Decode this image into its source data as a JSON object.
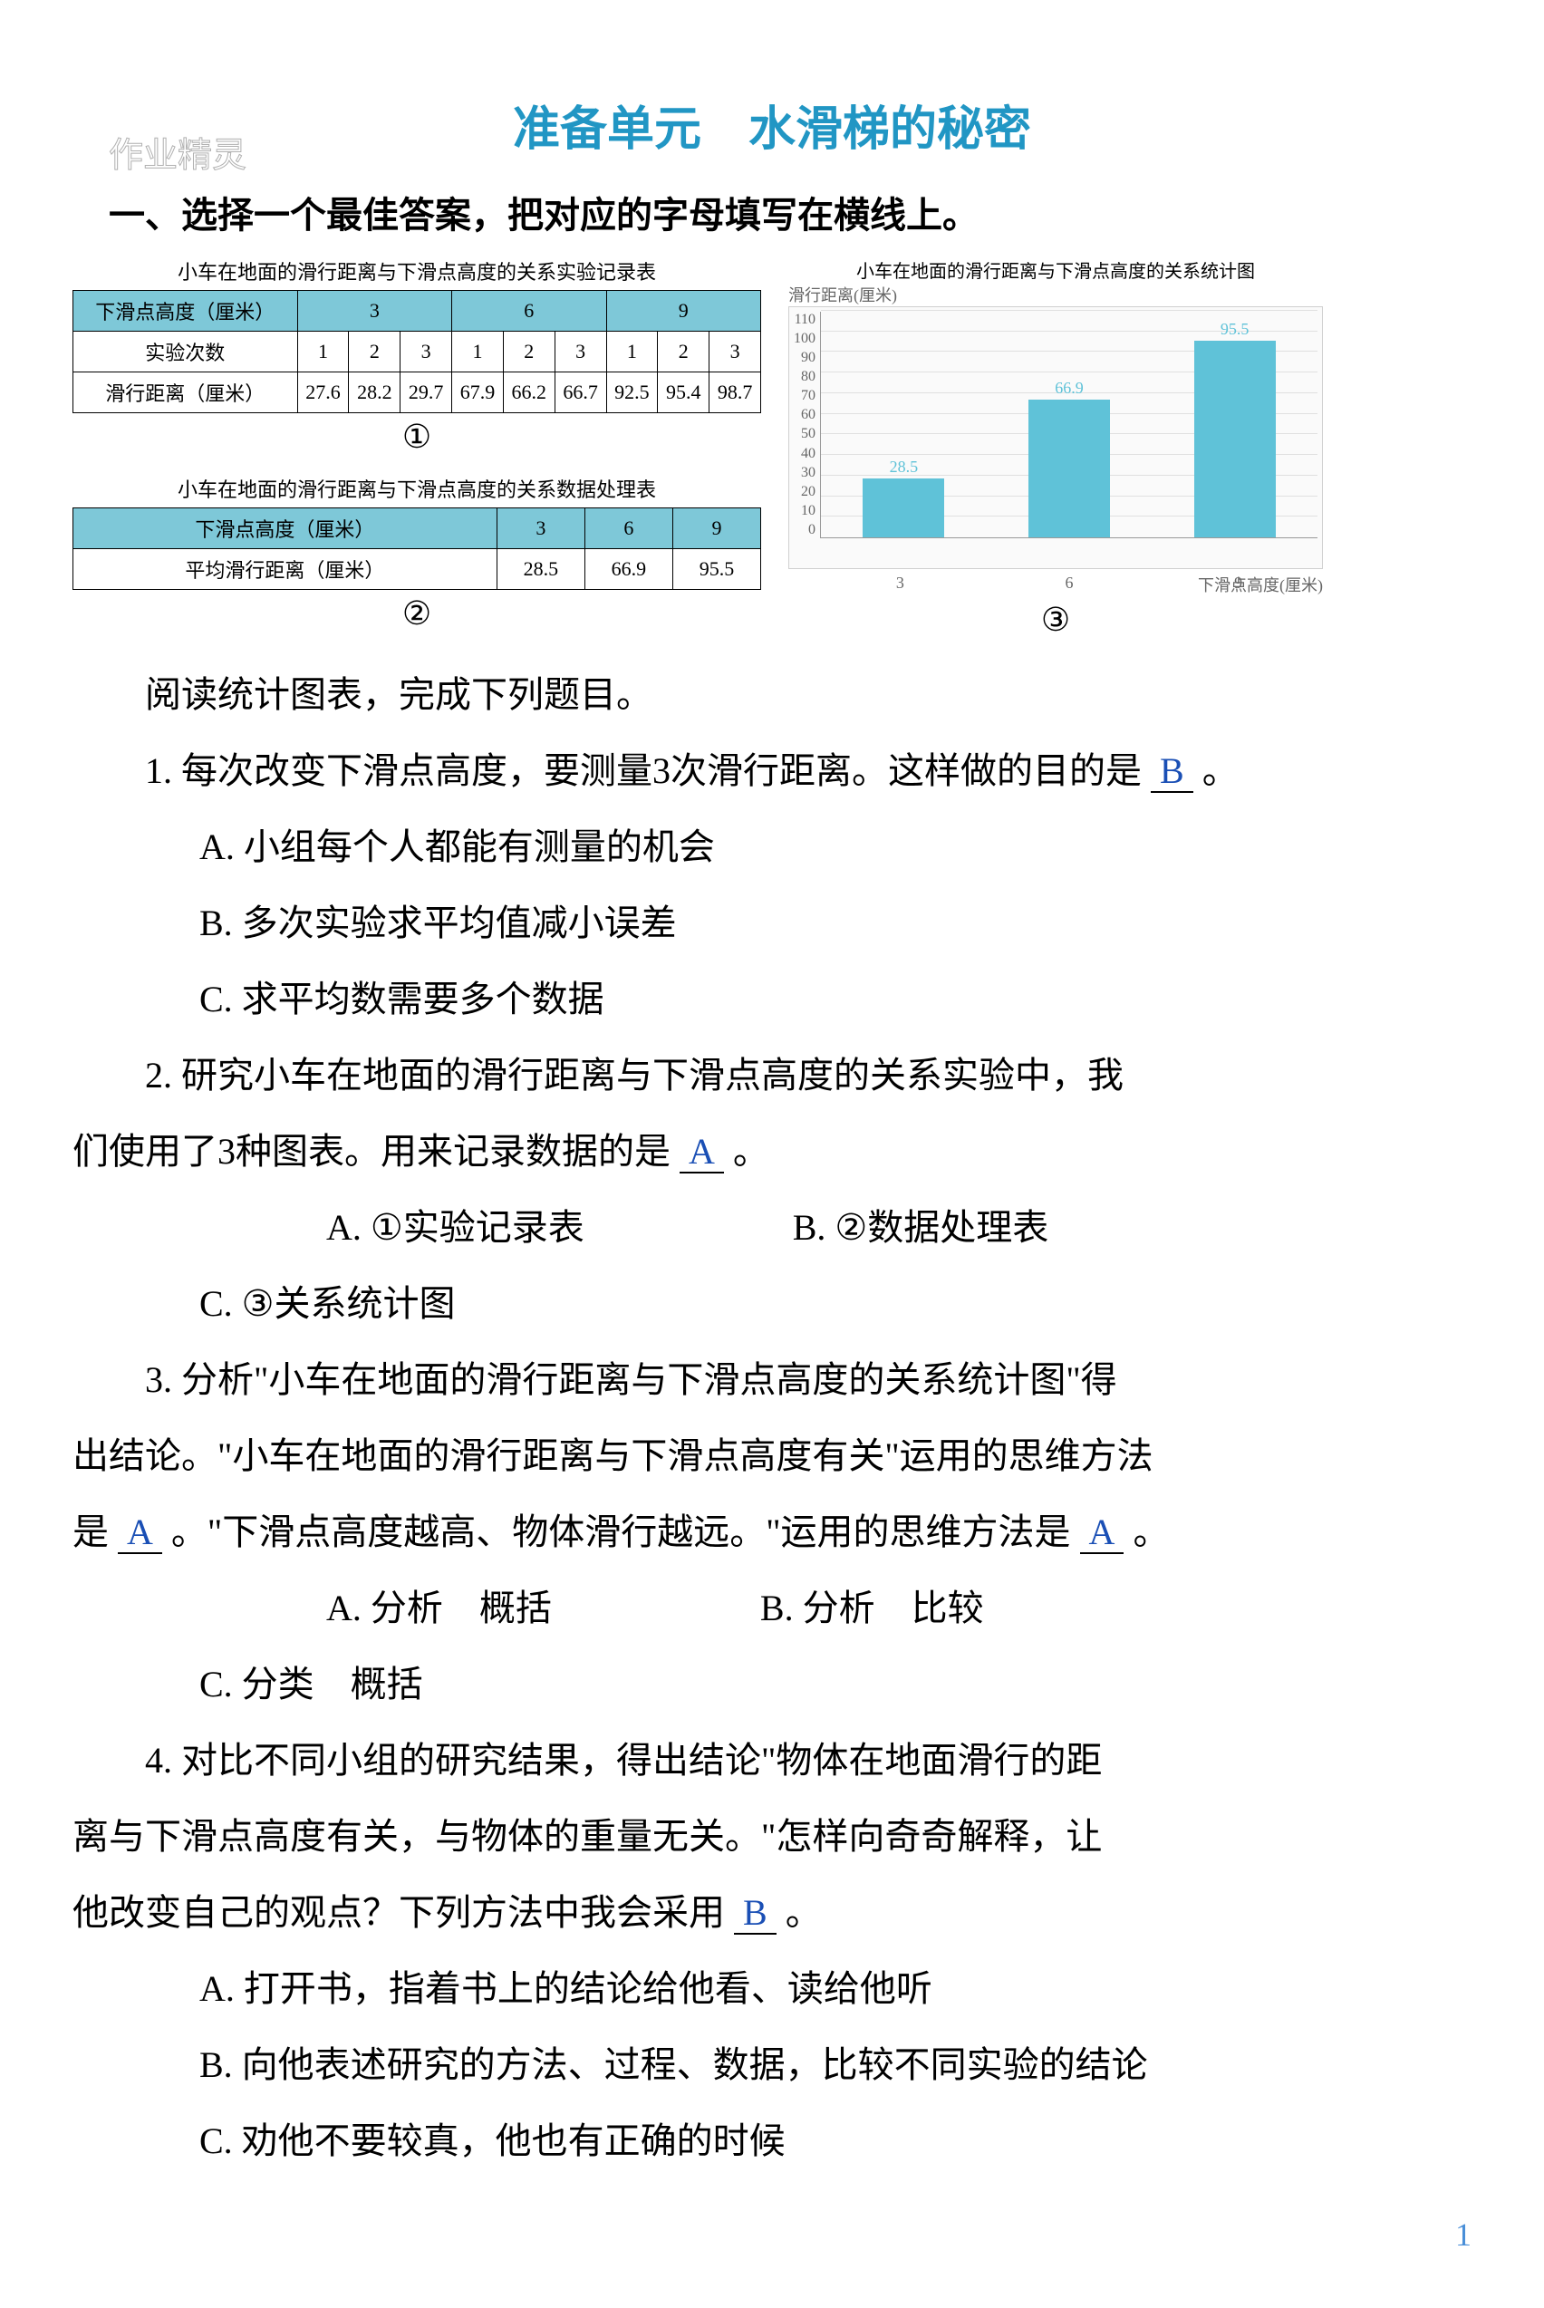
{
  "title": "准备单元　水滑梯的秘密",
  "watermark_top": "作业精灵",
  "section_header": "一、选择一个最佳答案，把对应的字母填写在横线上。",
  "table1": {
    "title": "小车在地面的滑行距离与下滑点高度的关系实验记录表",
    "header_col": "下滑点高度（厘米）",
    "heights": [
      "3",
      "6",
      "9"
    ],
    "row_trial_label": "实验次数",
    "trials": [
      "1",
      "2",
      "3",
      "1",
      "2",
      "3",
      "1",
      "2",
      "3"
    ],
    "row_dist_label": "滑行距离（厘米）",
    "distances": [
      "27.6",
      "28.2",
      "29.7",
      "67.9",
      "66.2",
      "66.7",
      "92.5",
      "95.4",
      "98.7"
    ],
    "circled": "①"
  },
  "table2": {
    "title": "小车在地面的滑行距离与下滑点高度的关系数据处理表",
    "header_col": "下滑点高度（厘米）",
    "heights": [
      "3",
      "6",
      "9"
    ],
    "row_avg_label": "平均滑行距离（厘米）",
    "averages": [
      "28.5",
      "66.9",
      "95.5"
    ],
    "circled": "②"
  },
  "chart": {
    "title": "小车在地面的滑行距离与下滑点高度的关系统计图",
    "ylabel": "滑行距离(厘米)",
    "xlabel": "下滑点高度(厘米)",
    "categories": [
      "3",
      "6",
      "9"
    ],
    "values": [
      28.5,
      66.9,
      95.5
    ],
    "value_labels": [
      "28.5",
      "66.9",
      "95.5"
    ],
    "bar_color": "#5fc2d8",
    "ylim": [
      0,
      110
    ],
    "yticks": [
      "0",
      "10",
      "20",
      "30",
      "40",
      "50",
      "60",
      "70",
      "80",
      "90",
      "100",
      "110"
    ],
    "background_color": "#fafafa",
    "grid_color": "#e0e0e0",
    "circled": "③"
  },
  "intro": "阅读统计图表，完成下列题目。",
  "q1": {
    "stem": "1. 每次改变下滑点高度，要测量3次滑行距离。这样做的目的是",
    "answer": "B",
    "tail": "。",
    "optA": "A. 小组每个人都能有测量的机会",
    "optB": "B. 多次实验求平均值减小误差",
    "optC": "C. 求平均数需要多个数据"
  },
  "q2": {
    "stem1": "2. 研究小车在地面的滑行距离与下滑点高度的关系实验中，我",
    "stem2": "们使用了3种图表。用来记录数据的是",
    "answer": "A",
    "tail": "。",
    "optA": "A. ①实验记录表",
    "optB": "B. ②数据处理表",
    "optC": "C. ③关系统计图"
  },
  "q3": {
    "stem1": "3. 分析\"小车在地面的滑行距离与下滑点高度的关系统计图\"得",
    "stem2a": "出结论。\"小车在地面的滑行距离与下滑点高度有关\"运用的思维方法",
    "stem2b": "是",
    "answer1": "A",
    "mid": "。\"下滑点高度越高、物体滑行越远。\"运用的思维方法是",
    "answer2": "A",
    "tail": "。",
    "optA": "A. 分析　概括",
    "optB": "B. 分析　比较",
    "optC": "C. 分类　概括"
  },
  "q4": {
    "stem1": "4. 对比不同小组的研究结果，得出结论\"物体在地面滑行的距",
    "stem2": "离与下滑点高度有关，与物体的重量无关。\"怎样向奇奇解释，让",
    "stem3": "他改变自己的观点？下列方法中我会采用",
    "answer": "B",
    "tail": "。",
    "optA": "A. 打开书，指着书上的结论给他看、读给他听",
    "optB": "B. 向他表述研究的方法、过程、数据，比较不同实验的结论",
    "optC": "C. 劝他不要较真，他也有正确的时候"
  },
  "page_number": "1"
}
